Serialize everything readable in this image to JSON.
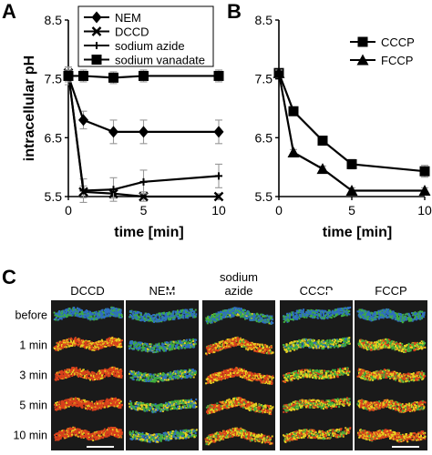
{
  "panels": {
    "A": "A",
    "B": "B",
    "C": "C"
  },
  "chart_data": [
    {
      "type": "line",
      "panel": "A",
      "ylabel": "intracellular pH",
      "xlabel": "time [min]",
      "xlim": [
        0,
        10
      ],
      "ylim": [
        5.5,
        8.5
      ],
      "xticks": [
        "0",
        "5",
        "10"
      ],
      "yticks": [
        "5.5",
        "6.5",
        "7.5",
        "8.5"
      ],
      "legend_position": "top-right",
      "series": [
        {
          "name": "NEM",
          "marker": "diamond",
          "x": [
            0,
            1,
            3,
            5,
            10
          ],
          "y": [
            7.55,
            6.8,
            6.6,
            6.6,
            6.6
          ],
          "err": [
            0.15,
            0.15,
            0.2,
            0.2,
            0.2
          ]
        },
        {
          "name": "DCCD",
          "marker": "x",
          "x": [
            0,
            1,
            3,
            5,
            10
          ],
          "y": [
            7.6,
            5.58,
            5.55,
            5.5,
            5.5
          ],
          "err": [
            0.1,
            0.1,
            0.08,
            0.08,
            0.05
          ]
        },
        {
          "name": "sodium azide",
          "marker": "plus",
          "x": [
            0,
            1,
            3,
            5,
            10
          ],
          "y": [
            7.6,
            5.6,
            5.62,
            5.75,
            5.85
          ],
          "err": [
            0.1,
            0.2,
            0.2,
            0.2,
            0.2
          ]
        },
        {
          "name": "sodium vanadate",
          "marker": "square",
          "x": [
            0,
            1,
            3,
            5,
            10
          ],
          "y": [
            7.55,
            7.55,
            7.52,
            7.55,
            7.55
          ],
          "err": [
            0.1,
            0.1,
            0.1,
            0.1,
            0.1
          ]
        }
      ]
    },
    {
      "type": "line",
      "panel": "B",
      "xlabel": "time [min]",
      "xlim": [
        0,
        10
      ],
      "ylim": [
        5.5,
        8.5
      ],
      "xticks": [
        "0",
        "5",
        "10"
      ],
      "yticks": [
        "5.5",
        "6.5",
        "7.5",
        "8.5"
      ],
      "legend_position": "top-right",
      "series": [
        {
          "name": "CCCP",
          "marker": "square",
          "x": [
            0,
            1,
            3,
            5,
            10
          ],
          "y": [
            7.6,
            6.95,
            6.45,
            6.05,
            5.93
          ],
          "err": [
            0.05,
            0.05,
            0.05,
            0.08,
            0.1
          ]
        },
        {
          "name": "FCCP",
          "marker": "triangle",
          "x": [
            0,
            1,
            3,
            5,
            10
          ],
          "y": [
            7.6,
            6.25,
            5.97,
            5.6,
            5.6
          ],
          "err": [
            0.05,
            0.05,
            0.05,
            0.05,
            0.05
          ]
        }
      ]
    }
  ],
  "micrograph": {
    "columns": [
      "DCCD",
      "NEM",
      "sodium\nazide",
      "CCCP",
      "FCCP"
    ],
    "column_lines": [
      [
        "DCCD"
      ],
      [
        "NEM"
      ],
      [
        "sodium",
        "azide"
      ],
      [
        "CCCP"
      ],
      [
        "FCCP"
      ]
    ],
    "rows": [
      "before",
      "1 min",
      "3 min",
      "5 min",
      "10 min"
    ],
    "colors": {
      "background": "#1a1a1a",
      "cool": "#2f6fc0",
      "mid": "#3fae3f",
      "warm": "#e8d020",
      "hot": "#d8401c"
    },
    "heat_level": [
      [
        0.9,
        0.85,
        0.8,
        0.85,
        0.85
      ],
      [
        0.2,
        0.75,
        0.25,
        0.6,
        0.45
      ],
      [
        0.1,
        0.7,
        0.2,
        0.45,
        0.35
      ],
      [
        0.1,
        0.65,
        0.3,
        0.4,
        0.3
      ],
      [
        0.1,
        0.65,
        0.3,
        0.35,
        0.25
      ]
    ]
  }
}
